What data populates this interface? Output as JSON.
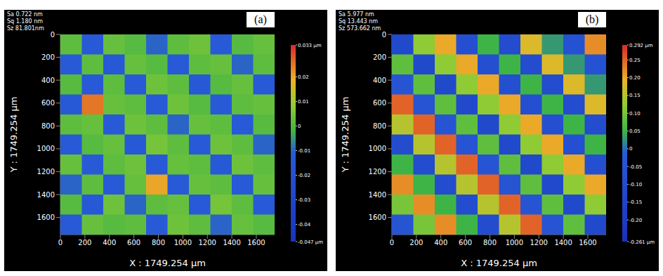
{
  "chart_data": [
    {
      "type": "heatmap",
      "title": "(a)",
      "annotations": [
        "Sa 0.722 nm",
        "Sq 1.180 nm",
        "Sz 81.801nm"
      ],
      "x_label": "X : 1749.254 μm",
      "y_label": "Y : 1749.254 μm",
      "xlim": [
        0,
        1749.254
      ],
      "ylim": [
        0,
        1749.254
      ],
      "xticks": [
        0,
        200,
        400,
        600,
        800,
        1000,
        1200,
        1400,
        1600
      ],
      "yticks": [
        0,
        200,
        400,
        600,
        800,
        1000,
        1200,
        1400,
        1600
      ],
      "cells": [
        [
          0.002,
          -0.012,
          0.003,
          0.001,
          -0.01,
          0.002,
          0.004,
          -0.011,
          0.001,
          0.003
        ],
        [
          -0.011,
          0.002,
          -0.013,
          0.003,
          0.001,
          -0.012,
          0.002,
          0.003,
          -0.01,
          0.002
        ],
        [
          0.001,
          -0.012,
          0.002,
          -0.011,
          0.004,
          0.002,
          -0.013,
          0.001,
          0.003,
          -0.011
        ],
        [
          -0.013,
          0.025,
          0.003,
          0.002,
          -0.012,
          0.004,
          0.001,
          -0.011,
          0.002,
          0.003
        ],
        [
          0.002,
          0.003,
          -0.011,
          0.004,
          0.002,
          -0.01,
          0.003,
          0.002,
          -0.012,
          0.001
        ],
        [
          -0.012,
          0.001,
          0.003,
          -0.013,
          0.005,
          0.002,
          -0.011,
          0.004,
          0.002,
          -0.01
        ],
        [
          0.003,
          -0.011,
          0.002,
          0.004,
          -0.012,
          0.003,
          0.002,
          -0.013,
          0.004,
          0.002
        ],
        [
          -0.01,
          0.002,
          -0.012,
          0.003,
          0.02,
          -0.011,
          0.003,
          0.002,
          -0.012,
          0.003
        ],
        [
          0.001,
          -0.013,
          0.004,
          -0.01,
          0.002,
          0.003,
          -0.012,
          0.005,
          0.002,
          -0.011
        ],
        [
          -0.012,
          0.003,
          0.001,
          0.002,
          -0.011,
          0.004,
          0.002,
          -0.01,
          0.003,
          0.001
        ]
      ],
      "color_range": [
        -0.047,
        0.033
      ],
      "color_ticks": [
        {
          "value": 0.033,
          "label": "0.033 μm"
        },
        0.02,
        0.01,
        0,
        -0.01,
        -0.02,
        -0.03,
        -0.04,
        {
          "value": -0.047,
          "label": "-0.047 μm"
        }
      ]
    },
    {
      "type": "heatmap",
      "title": "(b)",
      "annotations": [
        "Sa 5.977 nm",
        "Sq 13.443 nm",
        "Sz 573.662 nm"
      ],
      "x_label": "X : 1749.254 μm",
      "y_label": "Y : 1749.254 μm",
      "xlim": [
        0,
        1749.254
      ],
      "ylim": [
        0,
        1749.254
      ],
      "xticks": [
        0,
        200,
        400,
        600,
        800,
        1000,
        1200,
        1400,
        1600
      ],
      "yticks": [
        0,
        200,
        400,
        600,
        800,
        1000,
        1200,
        1400,
        1600
      ],
      "cells": [
        [
          -0.12,
          0.12,
          0.2,
          -0.08,
          0.05,
          -0.1,
          0.18,
          0.03,
          -0.06,
          0.22
        ],
        [
          0.08,
          -0.12,
          0.12,
          0.2,
          -0.08,
          0.05,
          -0.1,
          0.18,
          0.03,
          -0.06
        ],
        [
          -0.05,
          0.08,
          -0.12,
          0.12,
          0.2,
          -0.08,
          0.05,
          -0.1,
          0.18,
          0.03
        ],
        [
          0.25,
          -0.05,
          0.08,
          -0.12,
          0.12,
          0.2,
          -0.08,
          0.05,
          -0.1,
          0.18
        ],
        [
          0.15,
          0.25,
          -0.05,
          0.08,
          -0.12,
          0.12,
          0.2,
          -0.08,
          0.05,
          -0.1
        ],
        [
          -0.1,
          0.15,
          0.25,
          -0.05,
          0.08,
          -0.12,
          0.12,
          0.2,
          -0.08,
          0.05
        ],
        [
          0.05,
          -0.1,
          0.15,
          0.25,
          -0.05,
          0.08,
          -0.12,
          0.12,
          0.2,
          -0.08
        ],
        [
          0.22,
          0.05,
          -0.1,
          0.15,
          0.25,
          -0.05,
          0.08,
          -0.12,
          0.12,
          0.2
        ],
        [
          0.1,
          0.22,
          0.05,
          -0.1,
          0.15,
          0.25,
          -0.05,
          0.08,
          -0.12,
          0.12
        ],
        [
          -0.05,
          0.1,
          0.22,
          0.05,
          -0.1,
          0.15,
          0.25,
          -0.05,
          0.08,
          -0.12
        ]
      ],
      "color_range": [
        -0.261,
        0.292
      ],
      "color_ticks": [
        {
          "value": 0.292,
          "label": "0.292 μm"
        },
        0.25,
        {
          "value": 0.2,
          "label": "0.20"
        },
        0.15,
        {
          "value": 0.1,
          "label": "0.10"
        },
        0.05,
        0,
        -0.05,
        {
          "value": -0.1,
          "label": "-0.10"
        },
        -0.15,
        {
          "value": -0.2,
          "label": "-0.20"
        },
        {
          "value": -0.261,
          "label": "-0.261 μm"
        }
      ]
    }
  ]
}
